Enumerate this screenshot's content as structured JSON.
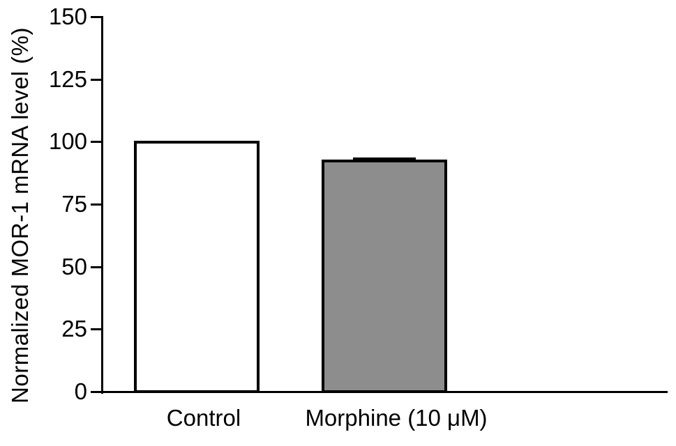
{
  "figure": {
    "background": "#ffffff",
    "text_color": "#000000",
    "axis_color": "#000000"
  },
  "chart_data": {
    "type": "bar",
    "title": "",
    "xlabel": "",
    "ylabel": "Normalized MOR-1 mRNA level (%)",
    "categories": [
      "Control",
      "Morphine (10 μM)"
    ],
    "values": [
      100,
      92.5
    ],
    "errors_plus": [
      0,
      1
    ],
    "ylim": [
      0,
      150
    ],
    "yticks": [
      0,
      25,
      50,
      75,
      100,
      125,
      150
    ],
    "bar_fill_colors": [
      "#ffffff",
      "#8d8d8d"
    ],
    "bar_border_color": "#000000",
    "error_bar_color": "#000000",
    "grid": false,
    "legend": "none"
  }
}
